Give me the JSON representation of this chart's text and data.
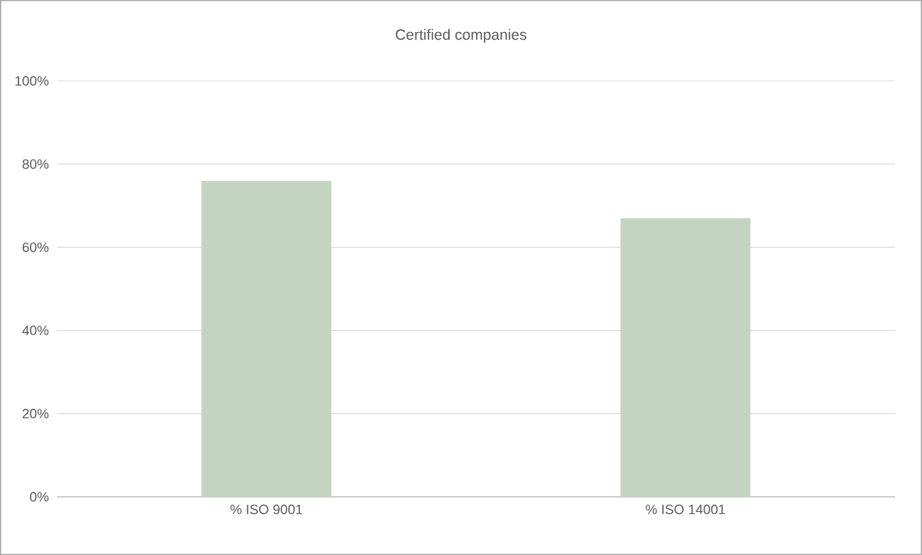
{
  "chart_data": {
    "type": "bar",
    "title": "Certified companies",
    "categories": [
      "% ISO 9001",
      "% ISO 14001"
    ],
    "values": [
      76,
      67
    ],
    "color": "#c3d5c0",
    "ylim": [
      0,
      100
    ],
    "yticks": [
      {
        "value": 0,
        "label": "0%"
      },
      {
        "value": 20,
        "label": "20%"
      },
      {
        "value": 40,
        "label": "40%"
      },
      {
        "value": 60,
        "label": "60%"
      },
      {
        "value": 80,
        "label": "80%"
      },
      {
        "value": 100,
        "label": "100%"
      }
    ],
    "grid": "y"
  }
}
